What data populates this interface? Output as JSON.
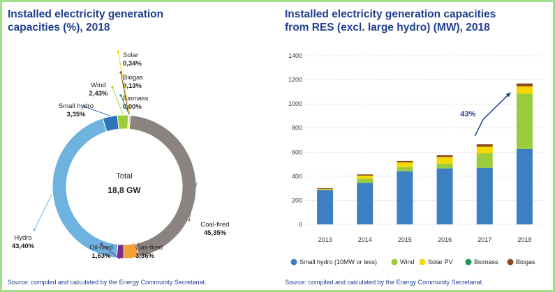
{
  "left": {
    "title_lines": [
      "Installed electricity generation",
      "capacities (%), 2018"
    ],
    "source": "Source: compiled and calculated by the Energy Community Secretariat."
  },
  "right": {
    "title_lines": [
      "Installed electricity generation capacities",
      "from RES (excl. large hydro) (MW), 2018"
    ],
    "source": "Source: compiled and calculated by the Energy Community Secretariat."
  },
  "chart_data": [
    {
      "type": "pie",
      "variant": "donut",
      "title": "Installed electricity generation capacities (%), 2018",
      "center_label": "Total",
      "center_value": "18,8 GW",
      "slices": [
        {
          "name": "Coal-fired",
          "value": 45.35,
          "label": "45,35%",
          "color": "#8a8380"
        },
        {
          "name": "Gas-fired",
          "value": 3.36,
          "label": "3,36%",
          "color": "#f2a03a"
        },
        {
          "name": "Oil-fired",
          "value": 1.63,
          "label": "1,63%",
          "color": "#7b2d8b"
        },
        {
          "name": "Hydro",
          "value": 43.4,
          "label": "43,40%",
          "color": "#6eb3df"
        },
        {
          "name": "Small hydro",
          "value": 3.35,
          "label": "3,35%",
          "color": "#2f74b9"
        },
        {
          "name": "Wind",
          "value": 2.43,
          "label": "2,43%",
          "color": "#9bcc3c"
        },
        {
          "name": "Biogas",
          "value": 0.13,
          "label": "0,13%",
          "color": "#8b4a1f"
        },
        {
          "name": "Biomass",
          "value": 0.0,
          "label": "0,00%",
          "color": "#1a9a5a"
        },
        {
          "name": "Solar",
          "value": 0.34,
          "label": "0,34%",
          "color": "#f5d800"
        }
      ]
    },
    {
      "type": "bar",
      "stacked": true,
      "title": "Installed electricity generation capacities from RES (excl. large hydro) (MW), 2018",
      "categories": [
        "2013",
        "2014",
        "2015",
        "2016",
        "2017",
        "2018"
      ],
      "ylim": [
        0,
        1400
      ],
      "yticks": [
        0,
        200,
        400,
        600,
        800,
        1000,
        1200,
        1400
      ],
      "series": [
        {
          "name": "Small hydro (10MW or less)",
          "color": "#3c7fc2",
          "values": [
            285,
            345,
            440,
            465,
            470,
            625
          ]
        },
        {
          "name": "Wind",
          "color": "#9bcc3c",
          "values": [
            5,
            35,
            35,
            40,
            120,
            460
          ]
        },
        {
          "name": "Solar PV",
          "color": "#f5d800",
          "values": [
            5,
            25,
            40,
            55,
            55,
            60
          ]
        },
        {
          "name": "Biomass",
          "color": "#1a9a5a",
          "values": [
            0,
            0,
            0,
            0,
            0,
            0
          ]
        },
        {
          "name": "Biogas",
          "color": "#8b4a1f",
          "values": [
            5,
            10,
            12,
            15,
            20,
            25
          ]
        }
      ],
      "annotation": "43%"
    }
  ]
}
